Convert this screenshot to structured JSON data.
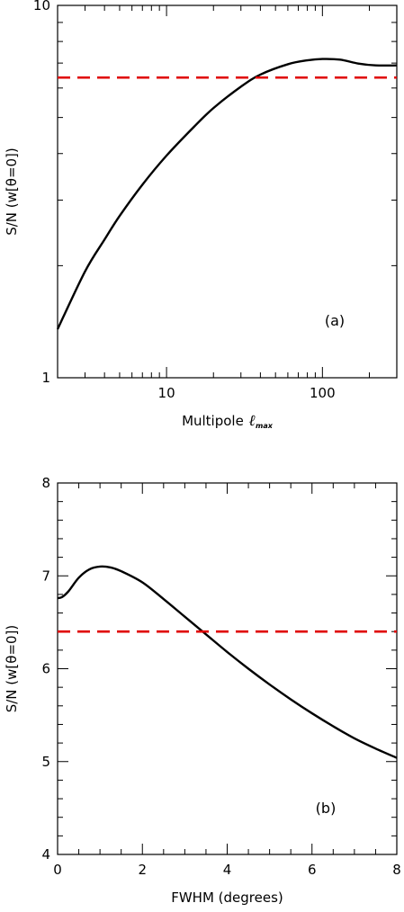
{
  "chart_data": [
    {
      "type": "line",
      "panel_label": "(a)",
      "xlabel": "Multipole",
      "xlabel_symbol": "ℓ",
      "xlabel_subscript": "max",
      "ylabel": "S/N (w[θ=0])",
      "xscale": "log",
      "yscale": "log",
      "xlim": [
        2,
        300
      ],
      "ylim": [
        1,
        10
      ],
      "x_ticks": [
        10,
        100
      ],
      "y_ticks": [
        1,
        10
      ],
      "grid": false,
      "series": [
        {
          "style": "solid-black",
          "x": [
            2,
            3,
            4,
            5,
            7,
            10,
            15,
            20,
            30,
            40,
            60,
            80,
            100,
            130,
            170,
            220,
            300
          ],
          "y": [
            1.35,
            1.93,
            2.35,
            2.72,
            3.3,
            3.95,
            4.72,
            5.3,
            6.05,
            6.52,
            6.95,
            7.12,
            7.18,
            7.15,
            6.98,
            6.9,
            6.9
          ]
        },
        {
          "style": "dashed-red",
          "x": [
            2,
            300
          ],
          "y": [
            6.4,
            6.4
          ]
        }
      ]
    },
    {
      "type": "line",
      "panel_label": "(b)",
      "xlabel": "FWHM (degrees)",
      "ylabel": "S/N (w[θ=0])",
      "xlim": [
        0,
        8
      ],
      "ylim": [
        4,
        8
      ],
      "x_ticks": [
        0,
        2,
        4,
        6,
        8
      ],
      "y_ticks": [
        4,
        5,
        6,
        7,
        8
      ],
      "grid": false,
      "series": [
        {
          "style": "solid-black",
          "x": [
            0,
            0.1,
            0.25,
            0.5,
            0.75,
            1.0,
            1.25,
            1.5,
            2.0,
            2.5,
            3.0,
            3.5,
            4.0,
            4.5,
            5.0,
            5.5,
            6.0,
            6.5,
            7.0,
            7.5,
            8.0
          ],
          "y": [
            6.76,
            6.77,
            6.83,
            6.98,
            7.07,
            7.1,
            7.09,
            7.05,
            6.93,
            6.75,
            6.56,
            6.37,
            6.18,
            6.0,
            5.83,
            5.67,
            5.52,
            5.38,
            5.25,
            5.14,
            5.04
          ]
        },
        {
          "style": "dashed-red",
          "x": [
            0,
            8
          ],
          "y": [
            6.4,
            6.4
          ]
        }
      ]
    }
  ]
}
